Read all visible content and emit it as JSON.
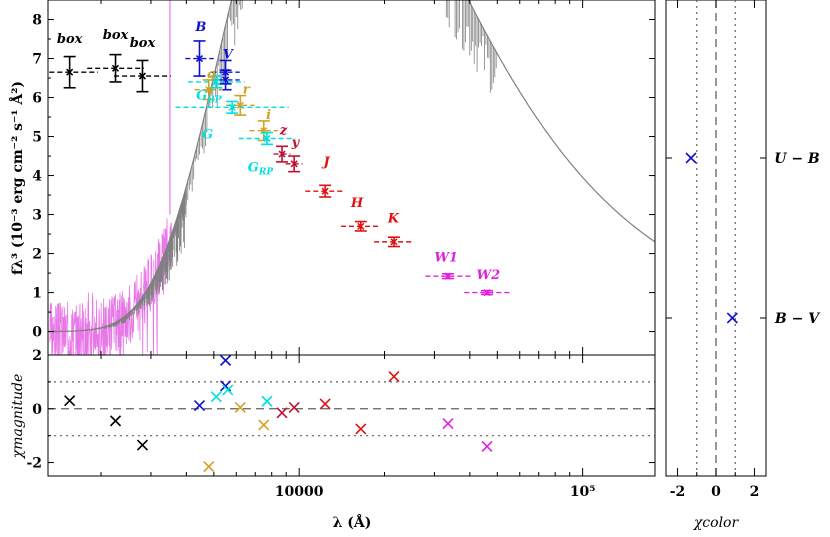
{
  "chart_data": {
    "type": "scatter",
    "main": {
      "ylabel": "fλ³ (10⁻³ erg cm⁻² s⁻¹ Å²)",
      "ylim": [
        -0.6,
        8.5
      ],
      "yticks": [
        "0",
        "1",
        "2",
        "3",
        "4",
        "5",
        "6",
        "7",
        "8"
      ],
      "xscale": "log",
      "xlim": [
        1300,
        180000
      ],
      "xtick_labels": [
        "10000",
        "10⁵"
      ],
      "photometry": [
        {
          "band": "box",
          "x": 1550,
          "y": 6.65,
          "err": 0.4,
          "xerr": 0.1,
          "color": "#000000"
        },
        {
          "band": "box",
          "x": 2250,
          "y": 6.75,
          "err": 0.35,
          "xerr": 0.1,
          "color": "#000000"
        },
        {
          "band": "box",
          "x": 2800,
          "y": 6.55,
          "err": 0.4,
          "xerr": 0.1,
          "color": "#000000"
        },
        {
          "band": "B",
          "x": 4450,
          "y": 7.0,
          "err": 0.45,
          "xerr": 0.05,
          "color": "#1010d0"
        },
        {
          "band": "V",
          "x": 5500,
          "y": 6.65,
          "err": 0.3,
          "xerr": 0.05,
          "color": "#1010d0"
        },
        {
          "band": "V",
          "x": 5500,
          "y": 6.45,
          "err": 0.25,
          "xerr": 0.05,
          "color": "#1010d0"
        },
        {
          "band": "g",
          "x": 4800,
          "y": 6.2,
          "err": 0.25,
          "xerr": 0.05,
          "color": "#d4a020"
        },
        {
          "band": "r",
          "x": 6200,
          "y": 5.8,
          "err": 0.25,
          "xerr": 0.05,
          "color": "#d4a020"
        },
        {
          "band": "i",
          "x": 7500,
          "y": 5.15,
          "err": 0.25,
          "xerr": 0.05,
          "color": "#d4a020"
        },
        {
          "band": "G_BP",
          "x": 5100,
          "y": 6.4,
          "err": 0.15,
          "xerr": 0.1,
          "color": "#00e0e0"
        },
        {
          "band": "G",
          "x": 5800,
          "y": 5.75,
          "err": 0.15,
          "xerr": 0.2,
          "color": "#00e0e0"
        },
        {
          "band": "G_RP",
          "x": 7700,
          "y": 4.95,
          "err": 0.15,
          "xerr": 0.1,
          "color": "#00e0e0"
        },
        {
          "band": "z",
          "x": 8700,
          "y": 4.55,
          "err": 0.2,
          "xerr": 0.03,
          "color": "#c01030"
        },
        {
          "band": "y",
          "x": 9600,
          "y": 4.3,
          "err": 0.2,
          "xerr": 0.03,
          "color": "#c01030"
        },
        {
          "band": "J",
          "x": 12350,
          "y": 3.6,
          "err": 0.15,
          "xerr": 0.07,
          "color": "#e01010"
        },
        {
          "band": "H",
          "x": 16500,
          "y": 2.7,
          "err": 0.12,
          "xerr": 0.07,
          "color": "#e01010"
        },
        {
          "band": "K",
          "x": 21600,
          "y": 2.3,
          "err": 0.12,
          "xerr": 0.07,
          "color": "#e01010"
        },
        {
          "band": "W1",
          "x": 33500,
          "y": 1.42,
          "err": 0.06,
          "xerr": 0.08,
          "color": "#e020e0"
        },
        {
          "band": "W2",
          "x": 46000,
          "y": 1.0,
          "err": 0.05,
          "xerr": 0.08,
          "color": "#e020e0"
        }
      ],
      "band_labels": [
        {
          "text": "box",
          "x": 1550,
          "y": 7.4,
          "color": "#000000"
        },
        {
          "text": "box",
          "x": 2250,
          "y": 7.5,
          "color": "#000000"
        },
        {
          "text": "box",
          "x": 2800,
          "y": 7.3,
          "color": "#000000"
        },
        {
          "text": "B",
          "x": 4500,
          "y": 7.7,
          "color": "#1010d0"
        },
        {
          "text": "V",
          "x": 5600,
          "y": 7.0,
          "color": "#1010d0"
        },
        {
          "text": "g",
          "x": 4900,
          "y": 6.5,
          "color": "#d4a020"
        },
        {
          "text": "r",
          "x": 6500,
          "y": 6.1,
          "color": "#d4a020"
        },
        {
          "text": "i",
          "x": 7800,
          "y": 5.45,
          "color": "#d4a020"
        },
        {
          "text": "G_BP",
          "x": 4800,
          "y": 5.95,
          "color": "#00e0e0"
        },
        {
          "text": "G",
          "x": 4750,
          "y": 4.95,
          "color": "#00e0e0"
        },
        {
          "text": "G_RP",
          "x": 7300,
          "y": 4.1,
          "color": "#00e0e0"
        },
        {
          "text": "z",
          "x": 8800,
          "y": 5.05,
          "color": "#c01030"
        },
        {
          "text": "y",
          "x": 9700,
          "y": 4.75,
          "color": "#c01030"
        },
        {
          "text": "J",
          "x": 12500,
          "y": 4.25,
          "color": "#e01010"
        },
        {
          "text": "H",
          "x": 16000,
          "y": 3.2,
          "color": "#e01010"
        },
        {
          "text": "K",
          "x": 21500,
          "y": 2.8,
          "color": "#e01010"
        },
        {
          "text": "W1",
          "x": 33000,
          "y": 1.8,
          "color": "#e020e0"
        },
        {
          "text": "W2",
          "x": 46500,
          "y": 1.35,
          "color": "#e020e0"
        }
      ]
    },
    "residuals": {
      "ylabel": "χmagnitude",
      "xlabel": "λ (Å)",
      "ylim": [
        -2.5,
        2.0
      ],
      "yticks": [
        "-2",
        "0",
        "2"
      ],
      "points": [
        {
          "x": 1550,
          "y": 0.3,
          "color": "#000000"
        },
        {
          "x": 2250,
          "y": -0.45,
          "color": "#000000"
        },
        {
          "x": 2800,
          "y": -1.35,
          "color": "#000000"
        },
        {
          "x": 4450,
          "y": 0.12,
          "color": "#1010d0"
        },
        {
          "x": 5500,
          "y": 1.8,
          "color": "#1010d0"
        },
        {
          "x": 5500,
          "y": 0.85,
          "color": "#1010d0"
        },
        {
          "x": 4800,
          "y": -2.15,
          "color": "#d4a020"
        },
        {
          "x": 6200,
          "y": 0.05,
          "color": "#d4a020"
        },
        {
          "x": 7500,
          "y": -0.6,
          "color": "#d4a020"
        },
        {
          "x": 5100,
          "y": 0.45,
          "color": "#00e0e0"
        },
        {
          "x": 5600,
          "y": 0.7,
          "color": "#00e0e0"
        },
        {
          "x": 7700,
          "y": 0.28,
          "color": "#00e0e0"
        },
        {
          "x": 8700,
          "y": -0.15,
          "color": "#c01030"
        },
        {
          "x": 9600,
          "y": 0.05,
          "color": "#c01030"
        },
        {
          "x": 12350,
          "y": 0.18,
          "color": "#e01010"
        },
        {
          "x": 16500,
          "y": -0.75,
          "color": "#e01010"
        },
        {
          "x": 21600,
          "y": 1.2,
          "color": "#e01010"
        },
        {
          "x": 33500,
          "y": -0.55,
          "color": "#e020e0"
        },
        {
          "x": 46000,
          "y": -1.4,
          "color": "#e020e0"
        }
      ]
    },
    "color_panel": {
      "xlabel": "χcolor",
      "xlim": [
        -2.6,
        2.6
      ],
      "xticks": [
        "-2",
        "0",
        "2"
      ],
      "rows": [
        {
          "label": "U − B",
          "value": -1.3,
          "color": "#1010d0"
        },
        {
          "label": "B − V",
          "value": 0.85,
          "color": "#1010d0"
        }
      ]
    },
    "colors": {
      "model": "#808080",
      "spectrum": "#e878e8",
      "dashed": "#606060"
    }
  }
}
